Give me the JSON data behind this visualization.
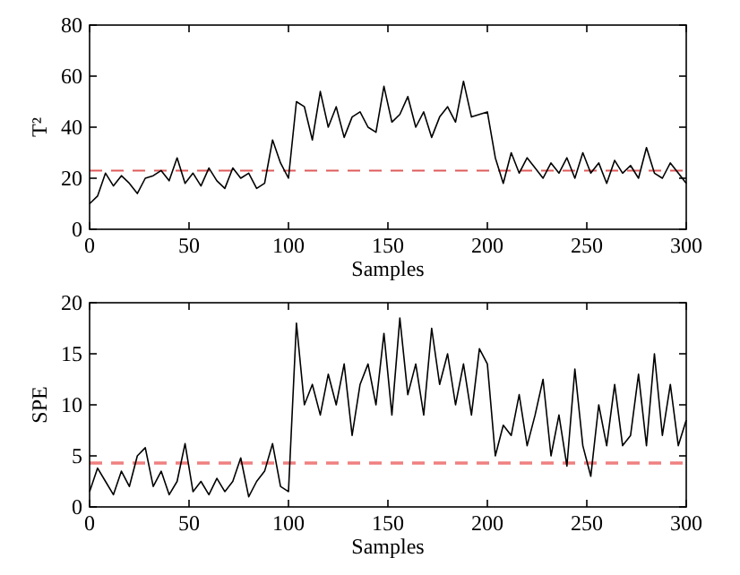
{
  "chart_data": [
    {
      "type": "line",
      "xlabel": "Samples",
      "ylabel": "T²",
      "xlim": [
        0,
        300
      ],
      "xticks": [
        0,
        50,
        100,
        150,
        200,
        250,
        300
      ],
      "ylim": [
        0,
        80
      ],
      "yticks": [
        0,
        20,
        40,
        60,
        80
      ],
      "grid": false,
      "x": [
        0,
        4,
        8,
        12,
        16,
        20,
        24,
        28,
        32,
        36,
        40,
        44,
        48,
        52,
        56,
        60,
        64,
        68,
        72,
        76,
        80,
        84,
        88,
        92,
        96,
        100,
        104,
        108,
        112,
        116,
        120,
        124,
        128,
        132,
        136,
        140,
        144,
        148,
        152,
        156,
        160,
        164,
        168,
        172,
        176,
        180,
        184,
        188,
        192,
        196,
        200,
        204,
        208,
        212,
        216,
        220,
        224,
        228,
        232,
        236,
        240,
        244,
        248,
        252,
        256,
        260,
        264,
        268,
        272,
        276,
        280,
        284,
        288,
        292,
        296,
        300
      ],
      "series": [
        {
          "color": "#000000",
          "values": [
            10,
            13,
            22,
            17,
            21,
            18,
            14,
            20,
            21,
            23,
            19,
            28,
            18,
            22,
            17,
            24,
            19,
            16,
            24,
            20,
            22,
            16,
            18,
            35,
            26,
            20,
            50,
            48,
            35,
            54,
            40,
            48,
            36,
            44,
            46,
            40,
            38,
            56,
            42,
            45,
            52,
            40,
            46,
            36,
            44,
            48,
            42,
            58,
            44,
            45,
            46,
            28,
            18,
            30,
            22,
            28,
            24,
            20,
            26,
            22,
            28,
            20,
            30,
            22,
            26,
            18,
            27,
            22,
            25,
            20,
            32,
            22,
            20,
            26,
            22,
            18
          ]
        }
      ],
      "ref_lines": [
        {
          "axis": "y",
          "value": 23,
          "color": "#e05a5a",
          "line_style": "dashed"
        }
      ]
    },
    {
      "type": "line",
      "xlabel": "Samples",
      "ylabel": "SPE",
      "xlim": [
        0,
        300
      ],
      "xticks": [
        0,
        50,
        100,
        150,
        200,
        250,
        300
      ],
      "ylim": [
        0,
        20
      ],
      "yticks": [
        0,
        5,
        10,
        15,
        20
      ],
      "grid": false,
      "x": [
        0,
        4,
        8,
        12,
        16,
        20,
        24,
        28,
        32,
        36,
        40,
        44,
        48,
        52,
        56,
        60,
        64,
        68,
        72,
        76,
        80,
        84,
        88,
        92,
        96,
        100,
        104,
        108,
        112,
        116,
        120,
        124,
        128,
        132,
        136,
        140,
        144,
        148,
        152,
        156,
        160,
        164,
        168,
        172,
        176,
        180,
        184,
        188,
        192,
        196,
        200,
        204,
        208,
        212,
        216,
        220,
        224,
        228,
        232,
        236,
        240,
        244,
        248,
        252,
        256,
        260,
        264,
        268,
        272,
        276,
        280,
        284,
        288,
        292,
        296,
        300
      ],
      "series": [
        {
          "color": "#000000",
          "values": [
            1.5,
            3.8,
            2.5,
            1.2,
            3.5,
            2,
            5,
            5.8,
            2,
            3.5,
            1.2,
            2.5,
            6.2,
            1.5,
            2.5,
            1.2,
            2.8,
            1.5,
            2.5,
            4.8,
            1,
            2.5,
            3.5,
            6.2,
            2,
            1.5,
            18,
            10,
            12,
            9,
            13,
            10,
            14,
            7,
            12,
            14,
            10,
            17,
            9,
            18.5,
            11,
            14,
            9,
            17.5,
            12,
            15,
            10,
            14,
            9,
            15.5,
            14,
            5,
            8,
            7,
            11,
            6,
            9,
            12.5,
            5,
            9,
            4,
            13.5,
            6,
            3,
            10,
            6,
            12,
            6,
            7,
            13,
            6,
            15,
            7,
            12,
            6,
            8.5
          ]
        }
      ],
      "ref_lines": [
        {
          "axis": "y",
          "value": 4.3,
          "color": "#f08080",
          "line_style": "dashed"
        }
      ]
    }
  ]
}
